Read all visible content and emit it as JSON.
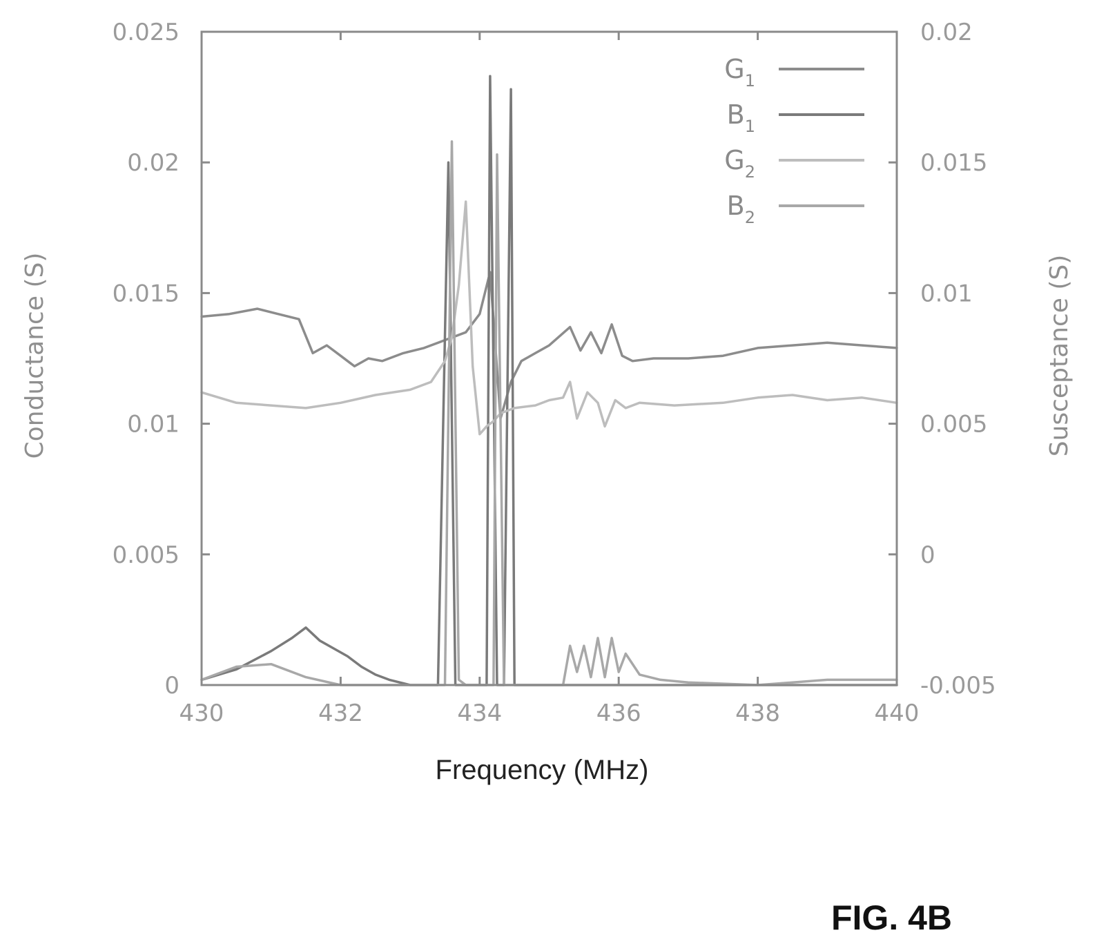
{
  "figure_label": "FIG. 4B",
  "chart_data": {
    "type": "line",
    "xlabel": "Frequency (MHz)",
    "ylabel_left": "Conductance (S)",
    "ylabel_right": "Susceptance (S)",
    "xlim": [
      430,
      440
    ],
    "ylim_left": [
      0,
      0.025
    ],
    "ylim_right": [
      -0.005,
      0.02
    ],
    "x_ticks": [
      "430",
      "432",
      "434",
      "436",
      "438",
      "440"
    ],
    "y_ticks_left": [
      "0",
      "0.005",
      "0.01",
      "0.015",
      "0.02",
      "0.025"
    ],
    "y_ticks_right": [
      "-0.005",
      "0",
      "0.005",
      "0.01",
      "0.015",
      "0.02"
    ],
    "grid": false,
    "legend_position": "top-right",
    "colors": {
      "axis": "#8a8a8a",
      "g1": "#8c8c8c",
      "b1": "#7a7a7a",
      "g2": "#bdbdbd",
      "b2": "#a8a8a8"
    },
    "series": [
      {
        "base": "G",
        "sub": "1",
        "axis": "left",
        "color": "#8c8c8c",
        "x": [
          430,
          430.4,
          430.8,
          431.1,
          431.4,
          431.6,
          431.8,
          432.0,
          432.2,
          432.4,
          432.6,
          432.9,
          433.2,
          433.5,
          433.8,
          434.0,
          434.15,
          434.3,
          434.45,
          434.6,
          434.8,
          435.0,
          435.3,
          435.45,
          435.6,
          435.75,
          435.9,
          436.05,
          436.2,
          436.5,
          437,
          437.5,
          438,
          438.5,
          439,
          439.5,
          440
        ],
        "y": [
          0.0141,
          0.0142,
          0.0144,
          0.0142,
          0.014,
          0.0127,
          0.013,
          0.0126,
          0.0122,
          0.0125,
          0.0124,
          0.0127,
          0.0129,
          0.0132,
          0.0135,
          0.0142,
          0.0158,
          0.0102,
          0.0116,
          0.0124,
          0.0127,
          0.013,
          0.0137,
          0.0128,
          0.0135,
          0.0127,
          0.0138,
          0.0126,
          0.0124,
          0.0125,
          0.0125,
          0.0126,
          0.0129,
          0.013,
          0.0131,
          0.013,
          0.0129
        ]
      },
      {
        "base": "B",
        "sub": "1",
        "axis": "right",
        "color": "#7a7a7a",
        "x": [
          430,
          430.5,
          431,
          431.3,
          431.5,
          431.7,
          431.9,
          432.1,
          432.3,
          432.5,
          432.7,
          433.0,
          433.4,
          433.55,
          433.65,
          433.75,
          433.9,
          434.0,
          434.1,
          434.15,
          434.25,
          434.35,
          434.45,
          434.5,
          434.6,
          435,
          436,
          437,
          440
        ],
        "y": [
          -0.0048,
          -0.0044,
          -0.0037,
          -0.0032,
          -0.0028,
          -0.0033,
          -0.0036,
          -0.0039,
          -0.0043,
          -0.0046,
          -0.0048,
          -0.005,
          -0.005,
          0.015,
          -0.005,
          -0.005,
          -0.005,
          -0.005,
          -0.005,
          0.0183,
          -0.005,
          -0.005,
          0.0178,
          -0.005,
          -0.005,
          -0.005,
          -0.005,
          -0.005,
          -0.005
        ]
      },
      {
        "base": "G",
        "sub": "2",
        "axis": "left",
        "color": "#bdbdbd",
        "x": [
          430,
          430.5,
          431,
          431.5,
          432,
          432.5,
          433,
          433.3,
          433.5,
          433.6,
          433.7,
          433.8,
          433.9,
          434.0,
          434.1,
          434.2,
          434.3,
          434.5,
          434.8,
          435.0,
          435.2,
          435.3,
          435.4,
          435.55,
          435.7,
          435.8,
          435.95,
          436.1,
          436.3,
          436.8,
          437.5,
          438,
          438.5,
          439,
          439.5,
          440
        ],
        "y": [
          0.0112,
          0.0108,
          0.0107,
          0.0106,
          0.0108,
          0.0111,
          0.0113,
          0.0116,
          0.0124,
          0.0133,
          0.0153,
          0.0185,
          0.0122,
          0.0096,
          0.0099,
          0.0101,
          0.0104,
          0.0106,
          0.0107,
          0.0109,
          0.011,
          0.0116,
          0.0102,
          0.0112,
          0.0108,
          0.0099,
          0.0109,
          0.0106,
          0.0108,
          0.0107,
          0.0108,
          0.011,
          0.0111,
          0.0109,
          0.011,
          0.0108
        ]
      },
      {
        "base": "B",
        "sub": "2",
        "axis": "right",
        "color": "#a8a8a8",
        "x": [
          430,
          430.5,
          431,
          431.5,
          432,
          432.5,
          433,
          433.5,
          433.6,
          433.7,
          433.8,
          433.9,
          434.0,
          434.1,
          434.2,
          434.25,
          434.35,
          434.5,
          434.6,
          435.2,
          435.3,
          435.4,
          435.5,
          435.6,
          435.7,
          435.8,
          435.9,
          436.0,
          436.1,
          436.3,
          436.6,
          437,
          438,
          439,
          440
        ],
        "y": [
          -0.0048,
          -0.0043,
          -0.0042,
          -0.0047,
          -0.005,
          -0.005,
          -0.005,
          -0.005,
          0.0158,
          -0.0048,
          -0.005,
          -0.005,
          -0.005,
          -0.005,
          -0.005,
          0.0153,
          -0.005,
          -0.005,
          -0.005,
          -0.005,
          -0.0035,
          -0.0045,
          -0.0035,
          -0.0047,
          -0.0032,
          -0.0047,
          -0.0032,
          -0.0045,
          -0.0038,
          -0.0046,
          -0.0048,
          -0.0049,
          -0.005,
          -0.0048,
          -0.0048
        ]
      }
    ]
  }
}
